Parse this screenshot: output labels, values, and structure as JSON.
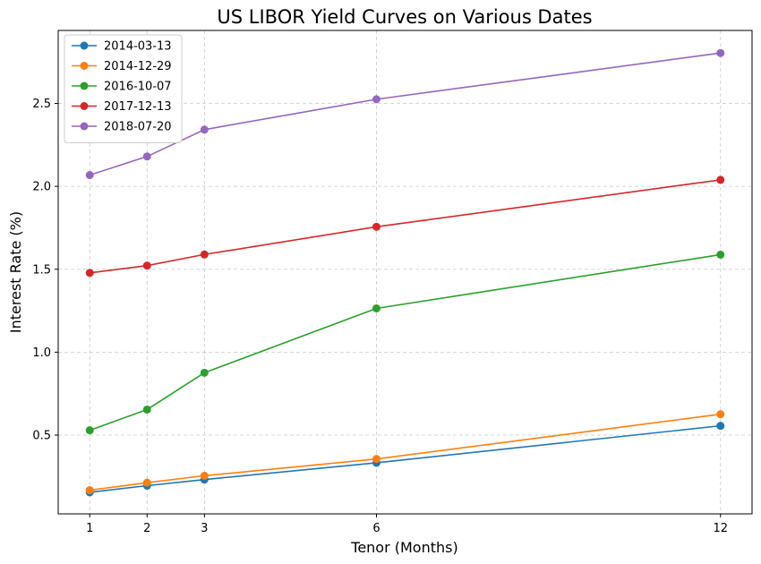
{
  "chart_data": {
    "type": "line",
    "title": "US LIBOR Yield Curves on Various Dates",
    "xlabel": "Tenor (Months)",
    "ylabel": "Interest Rate (%)",
    "x": [
      1,
      2,
      3,
      6,
      12
    ],
    "x_ticks": [
      "1",
      "2",
      "3",
      "6",
      "12"
    ],
    "xlim": [
      0.45,
      12.55
    ],
    "y_ticks": [
      "0.5",
      "1.0",
      "1.5",
      "2.0",
      "2.5"
    ],
    "y_tick_values": [
      0.5,
      1.0,
      1.5,
      2.0,
      2.5
    ],
    "ylim": [
      0.025,
      2.94
    ],
    "grid": true,
    "legend_position": "top-left",
    "marker": "circle",
    "series": [
      {
        "name": "2014-03-13",
        "color": "#1f77b4",
        "values": [
          0.155,
          0.195,
          0.232,
          0.333,
          0.556
        ]
      },
      {
        "name": "2014-12-29",
        "color": "#ff7f0e",
        "values": [
          0.168,
          0.213,
          0.255,
          0.356,
          0.626
        ]
      },
      {
        "name": "2016-10-07",
        "color": "#2ca02c",
        "values": [
          0.529,
          0.654,
          0.876,
          1.264,
          1.588
        ]
      },
      {
        "name": "2017-12-13",
        "color": "#d62728",
        "values": [
          1.478,
          1.522,
          1.589,
          1.756,
          2.039
        ]
      },
      {
        "name": "2018-07-20",
        "color": "#9467bd",
        "values": [
          2.068,
          2.18,
          2.342,
          2.525,
          2.804
        ]
      }
    ]
  }
}
